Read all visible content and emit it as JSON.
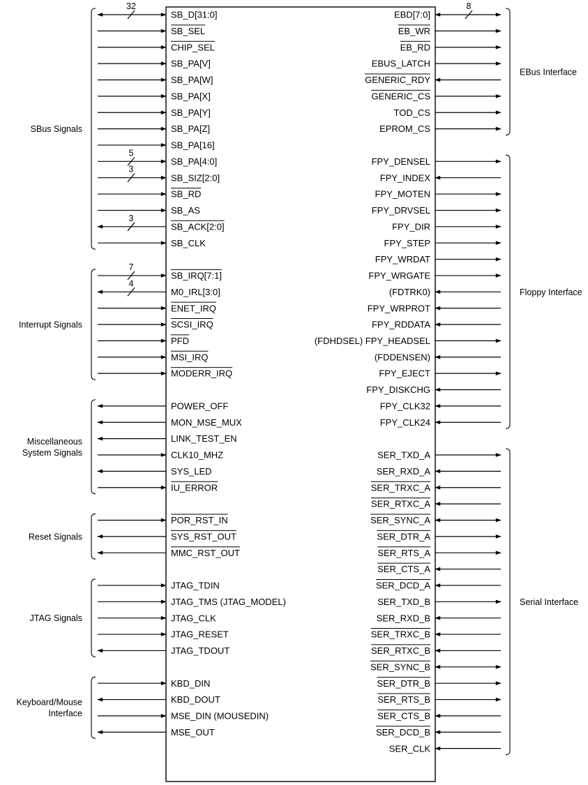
{
  "left_signals": [
    {
      "label": "SB_D[31:0]",
      "dir": "both",
      "bus": "32"
    },
    {
      "label": "SB_SEL",
      "dir": "in",
      "overline": true
    },
    {
      "label": "CHIP_SEL",
      "dir": "in",
      "overline": true
    },
    {
      "label": "SB_PA[V]",
      "dir": "in"
    },
    {
      "label": "SB_PA[W]",
      "dir": "in"
    },
    {
      "label": "SB_PA[X]",
      "dir": "in"
    },
    {
      "label": "SB_PA[Y]",
      "dir": "in"
    },
    {
      "label": "SB_PA[Z]",
      "dir": "in"
    },
    {
      "label": "SB_PA[16]",
      "dir": "in"
    },
    {
      "label": "SB_PA[4:0]",
      "dir": "in",
      "bus": "5"
    },
    {
      "label": "SB_SIZ[2:0]",
      "dir": "in",
      "bus": "3"
    },
    {
      "label": "SB_RD",
      "dir": "in",
      "overline": true
    },
    {
      "label": "SB_AS",
      "dir": "in"
    },
    {
      "label": "SB_ACK[2:0]",
      "dir": "out",
      "bus": "3",
      "overline": true
    },
    {
      "label": "SB_CLK",
      "dir": "in"
    },
    null,
    {
      "label": "SB_IRQ[7:1]",
      "dir": "in",
      "bus": "7",
      "overline": true
    },
    {
      "label": "M0_IRL[3:0]",
      "dir": "out",
      "bus": "4"
    },
    {
      "label": "ENET_IRQ",
      "dir": "in",
      "overline": true
    },
    {
      "label": "SCSI_IRQ",
      "dir": "in",
      "overline": true
    },
    {
      "label": "PFD",
      "dir": "in",
      "overline": true
    },
    {
      "label": "MSI_IRQ",
      "dir": "in",
      "overline": true
    },
    {
      "label": "MODERR_IRQ",
      "dir": "in",
      "overline": true
    },
    null,
    {
      "label": "POWER_OFF",
      "dir": "out"
    },
    {
      "label": "MON_MSE_MUX",
      "dir": "out"
    },
    {
      "label": "LINK_TEST_EN",
      "dir": "out"
    },
    {
      "label": "CLK10_MHZ",
      "dir": "in"
    },
    {
      "label": "SYS_LED",
      "dir": "out"
    },
    {
      "label": "IU_ERROR",
      "dir": "in",
      "overline": true
    },
    null,
    {
      "label": "POR_RST_IN",
      "dir": "in",
      "overline": true
    },
    {
      "label": "SYS_RST_OUT",
      "dir": "out",
      "overline": true
    },
    {
      "label": "MMC_RST_OUT",
      "dir": "out",
      "overline": true
    },
    null,
    {
      "label": "JTAG_TDIN",
      "dir": "in"
    },
    {
      "label": "JTAG_TMS (JTAG_MODEL)",
      "dir": "in"
    },
    {
      "label": "JTAG_CLK",
      "dir": "in"
    },
    {
      "label": "JTAG_RESET",
      "dir": "in"
    },
    {
      "label": "JTAG_TDOUT",
      "dir": "out"
    },
    null,
    {
      "label": "KBD_DIN",
      "dir": "in"
    },
    {
      "label": "KBD_DOUT",
      "dir": "out"
    },
    {
      "label": "MSE_DIN (MOUSEDIN)",
      "dir": "in"
    },
    {
      "label": "MSE_OUT",
      "dir": "out"
    }
  ],
  "right_signals": [
    {
      "label": "EBD[7:0]",
      "dir": "both",
      "bus": "8"
    },
    {
      "label": "EB_WR",
      "dir": "out",
      "overline": true
    },
    {
      "label": "EB_RD",
      "dir": "out",
      "overline": true
    },
    {
      "label": "EBUS_LATCH",
      "dir": "out"
    },
    {
      "label": "GENERIC_RDY",
      "dir": "in",
      "overline": true
    },
    {
      "label": "GENERIC_CS",
      "dir": "out",
      "overline": true
    },
    {
      "label": "TOD_CS",
      "dir": "out"
    },
    {
      "label": "EPROM_CS",
      "dir": "out"
    },
    null,
    {
      "label": "FPY_DENSEL",
      "dir": "out"
    },
    {
      "label": "FPY_INDEX",
      "dir": "in"
    },
    {
      "label": "FPY_MOTEN",
      "dir": "out"
    },
    {
      "label": "FPY_DRVSEL",
      "dir": "out"
    },
    {
      "label": "FPY_DIR",
      "dir": "out"
    },
    {
      "label": "FPY_STEP",
      "dir": "out"
    },
    {
      "label": "FPY_WRDAT",
      "dir": "out"
    },
    {
      "label": "FPY_WRGATE",
      "dir": "out"
    },
    {
      "label": "(FDTRK0)",
      "dir": "in"
    },
    {
      "label": "FPY_WRPROT",
      "dir": "in"
    },
    {
      "label": "FPY_RDDATA",
      "dir": "in"
    },
    {
      "label": "(FDHDSEL) FPY_HEADSEL",
      "dir": "out"
    },
    {
      "label": "(FDDENSEN)",
      "dir": "in"
    },
    {
      "label": "FPY_EJECT",
      "dir": "out"
    },
    {
      "label": "FPY_DISKCHG",
      "dir": "in"
    },
    {
      "label": "FPY_CLK32",
      "dir": "in"
    },
    {
      "label": "FPY_CLK24",
      "dir": "in"
    },
    null,
    {
      "label": "SER_TXD_A",
      "dir": "out"
    },
    {
      "label": "SER_RXD_A",
      "dir": "in"
    },
    {
      "label": "SER_TRXC_A",
      "dir": "in",
      "overline": true
    },
    {
      "label": "SER_RTXC_A",
      "dir": "in",
      "overline": true
    },
    {
      "label": "SER_SYNC_A",
      "dir": "both",
      "overline": true
    },
    {
      "label": "SER_DTR_A",
      "dir": "out",
      "overline": true
    },
    {
      "label": "SER_RTS_A",
      "dir": "out",
      "overline": true
    },
    {
      "label": "SER_CTS_A",
      "dir": "in",
      "overline": true
    },
    {
      "label": "SER_DCD_A",
      "dir": "in",
      "overline": true
    },
    {
      "label": "SER_TXD_B",
      "dir": "out"
    },
    {
      "label": "SER_RXD_B",
      "dir": "in"
    },
    {
      "label": "SER_TRXC_B",
      "dir": "in",
      "overline": true
    },
    {
      "label": "SER_RTXC_B",
      "dir": "in",
      "overline": true
    },
    {
      "label": "SER_SYNC_B",
      "dir": "both",
      "overline": true
    },
    {
      "label": "SER_DTR_B",
      "dir": "out",
      "overline": true
    },
    {
      "label": "SER_RTS_B",
      "dir": "out",
      "overline": true
    },
    {
      "label": "SER_CTS_B",
      "dir": "in",
      "overline": true
    },
    {
      "label": "SER_DCD_B",
      "dir": "in",
      "overline": true
    },
    {
      "label": "SER_CLK",
      "dir": "in"
    }
  ],
  "left_groups": [
    {
      "name": [
        "SBus Signals"
      ],
      "from": 0,
      "to": 14
    },
    {
      "name": [
        "Interrupt Signals"
      ],
      "from": 16,
      "to": 22
    },
    {
      "name": [
        "Miscellaneous",
        "System Signals"
      ],
      "from": 24,
      "to": 29
    },
    {
      "name": [
        "Reset Signals"
      ],
      "from": 31,
      "to": 33
    },
    {
      "name": [
        "JTAG Signals"
      ],
      "from": 35,
      "to": 39
    },
    {
      "name": [
        "Keyboard/Mouse",
        "Interface"
      ],
      "from": 41,
      "to": 44
    }
  ],
  "right_groups": [
    {
      "name": [
        "EBus Interface"
      ],
      "from": 0,
      "to": 7
    },
    {
      "name": [
        "Floppy Interface"
      ],
      "from": 9,
      "to": 25
    },
    {
      "name": [
        "Serial Interface"
      ],
      "from": 27,
      "to": 45
    }
  ]
}
